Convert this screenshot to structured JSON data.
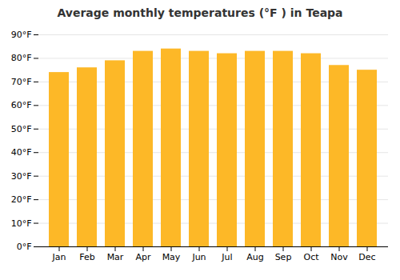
{
  "chart_data": {
    "type": "bar",
    "title": "Average monthly temperatures (°F ) in Teapa",
    "categories": [
      "Jan",
      "Feb",
      "Mar",
      "Apr",
      "May",
      "Jun",
      "Jul",
      "Aug",
      "Sep",
      "Oct",
      "Nov",
      "Dec"
    ],
    "values": [
      74,
      76,
      79,
      83,
      84,
      83,
      82,
      83,
      83,
      82,
      77,
      75
    ],
    "color": "#FDB827",
    "ylim": [
      0,
      90
    ],
    "yticks": [
      {
        "value": 0,
        "label": "0°F"
      },
      {
        "value": 10,
        "label": "10°F"
      },
      {
        "value": 20,
        "label": "20°F"
      },
      {
        "value": 30,
        "label": "30°F"
      },
      {
        "value": 40,
        "label": "40°F"
      },
      {
        "value": 50,
        "label": "50°F"
      },
      {
        "value": 60,
        "label": "60°F"
      },
      {
        "value": 70,
        "label": "70°F"
      },
      {
        "value": 80,
        "label": "80°F"
      },
      {
        "value": 90,
        "label": "90°F"
      }
    ],
    "grid": true
  }
}
